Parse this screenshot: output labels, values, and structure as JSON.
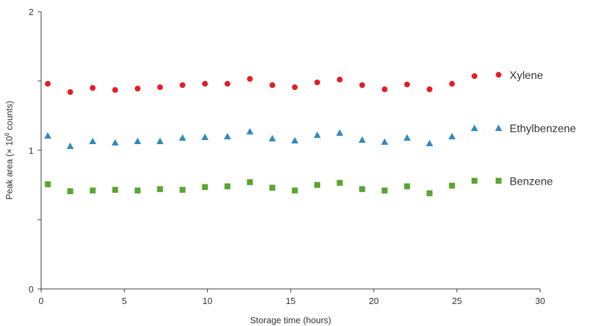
{
  "chart_data": {
    "type": "scatter",
    "xlabel": "Storage time (hours)",
    "ylabel_parts": {
      "before": "Peak area (× 10",
      "sup": "6",
      "after": " counts)"
    },
    "xlim": [
      0,
      30
    ],
    "ylim": [
      0,
      2
    ],
    "x_ticks": [
      0,
      5,
      10,
      15,
      20,
      25,
      30
    ],
    "y_ticks_labeled": [
      0,
      1,
      2
    ],
    "y_ticks_minor": [
      0.5,
      1.5
    ],
    "grid": false,
    "legend_placement": "right, inline next to series",
    "x": [
      0.4,
      1.75,
      3.1,
      4.45,
      5.8,
      7.15,
      8.5,
      9.85,
      11.2,
      12.55,
      13.9,
      15.25,
      16.6,
      17.95,
      19.3,
      20.65,
      22.0,
      23.35,
      24.7,
      26.05
    ],
    "series": [
      {
        "name": "Xylene",
        "marker": "circle",
        "color": "#e31e24",
        "values": [
          1.48,
          1.42,
          1.45,
          1.435,
          1.445,
          1.455,
          1.47,
          1.48,
          1.48,
          1.515,
          1.47,
          1.455,
          1.49,
          1.51,
          1.47,
          1.44,
          1.475,
          1.44,
          1.48,
          1.535
        ],
        "legend_point": {
          "x": 27.5,
          "y": 1.545
        }
      },
      {
        "name": "Ethylbenzene",
        "marker": "triangle",
        "color": "#2e8bc0",
        "values": [
          1.105,
          1.03,
          1.065,
          1.055,
          1.065,
          1.065,
          1.09,
          1.095,
          1.1,
          1.135,
          1.085,
          1.07,
          1.11,
          1.125,
          1.075,
          1.06,
          1.09,
          1.05,
          1.1,
          1.16
        ],
        "legend_point": {
          "x": 27.5,
          "y": 1.16
        }
      },
      {
        "name": "Benzene",
        "marker": "square",
        "color": "#5aa532",
        "values": [
          0.755,
          0.705,
          0.71,
          0.715,
          0.71,
          0.72,
          0.715,
          0.735,
          0.74,
          0.77,
          0.73,
          0.71,
          0.75,
          0.765,
          0.72,
          0.71,
          0.74,
          0.69,
          0.745,
          0.78
        ],
        "legend_point": {
          "x": 27.5,
          "y": 0.78
        }
      }
    ]
  }
}
